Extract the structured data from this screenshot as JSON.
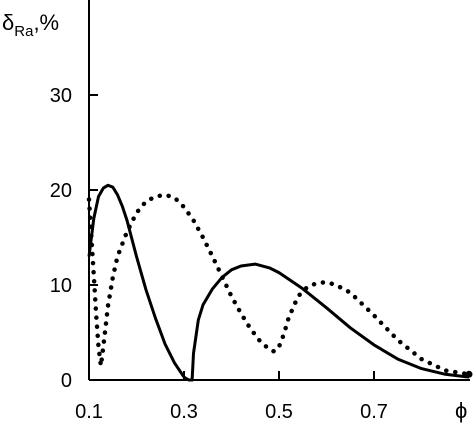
{
  "chart_data": {
    "type": "line",
    "title": "",
    "ylabel": {
      "symbol": "δ",
      "subscript": "Ra",
      "unit": ",%"
    },
    "xlabel": "ϕ",
    "xlim": [
      0.1,
      0.9
    ],
    "ylim": [
      0,
      40
    ],
    "xticks": [
      {
        "value": 0.1,
        "label": "0.1"
      },
      {
        "value": 0.3,
        "label": "0.3"
      },
      {
        "value": 0.5,
        "label": "0.5"
      },
      {
        "value": 0.7,
        "label": "0.7"
      }
    ],
    "yticks": [
      {
        "value": 0,
        "label": "0"
      },
      {
        "value": 10,
        "label": "10"
      },
      {
        "value": 20,
        "label": "20"
      },
      {
        "value": 30,
        "label": "30"
      }
    ],
    "grid": false,
    "colors": {
      "axis": "#000000",
      "series": "#000000"
    },
    "series": [
      {
        "style": "solid",
        "x": [
          0.1,
          0.11,
          0.12,
          0.13,
          0.14,
          0.15,
          0.16,
          0.17,
          0.18,
          0.2,
          0.22,
          0.24,
          0.26,
          0.28,
          0.3,
          0.31,
          0.317,
          0.32,
          0.33,
          0.34,
          0.36,
          0.38,
          0.4,
          0.42,
          0.45,
          0.48,
          0.5,
          0.55,
          0.6,
          0.65,
          0.7,
          0.75,
          0.8,
          0.85,
          0.9
        ],
        "y": [
          13.0,
          17.0,
          19.3,
          20.2,
          20.5,
          20.3,
          19.5,
          18.3,
          16.8,
          13.0,
          9.5,
          6.5,
          3.8,
          1.8,
          0.3,
          0.0,
          0.0,
          2.8,
          6.3,
          7.9,
          9.6,
          10.8,
          11.6,
          12.0,
          12.2,
          11.8,
          11.3,
          9.6,
          7.6,
          5.5,
          3.7,
          2.2,
          1.2,
          0.6,
          0.3
        ]
      },
      {
        "style": "dotted",
        "x": [
          0.1,
          0.105,
          0.11,
          0.115,
          0.12,
          0.125,
          0.13,
          0.14,
          0.15,
          0.16,
          0.18,
          0.2,
          0.22,
          0.24,
          0.26,
          0.28,
          0.3,
          0.32,
          0.34,
          0.36,
          0.38,
          0.4,
          0.42,
          0.44,
          0.46,
          0.48,
          0.49,
          0.5,
          0.51,
          0.52,
          0.54,
          0.56,
          0.58,
          0.6,
          0.62,
          0.65,
          0.7,
          0.75,
          0.8,
          0.85,
          0.9
        ],
        "y": [
          19.0,
          15.0,
          11.0,
          7.0,
          3.5,
          1.5,
          3.5,
          7.8,
          10.8,
          13.0,
          15.6,
          17.6,
          18.8,
          19.3,
          19.5,
          19.2,
          18.2,
          16.8,
          15.0,
          13.0,
          10.9,
          8.8,
          7.0,
          5.4,
          4.1,
          3.2,
          3.0,
          3.5,
          4.8,
          6.5,
          8.8,
          9.8,
          10.2,
          10.3,
          10.0,
          9.2,
          6.8,
          4.2,
          2.2,
          1.0,
          0.6
        ]
      }
    ],
    "end_marker": {
      "x": 0.9,
      "y": 0.6
    }
  }
}
